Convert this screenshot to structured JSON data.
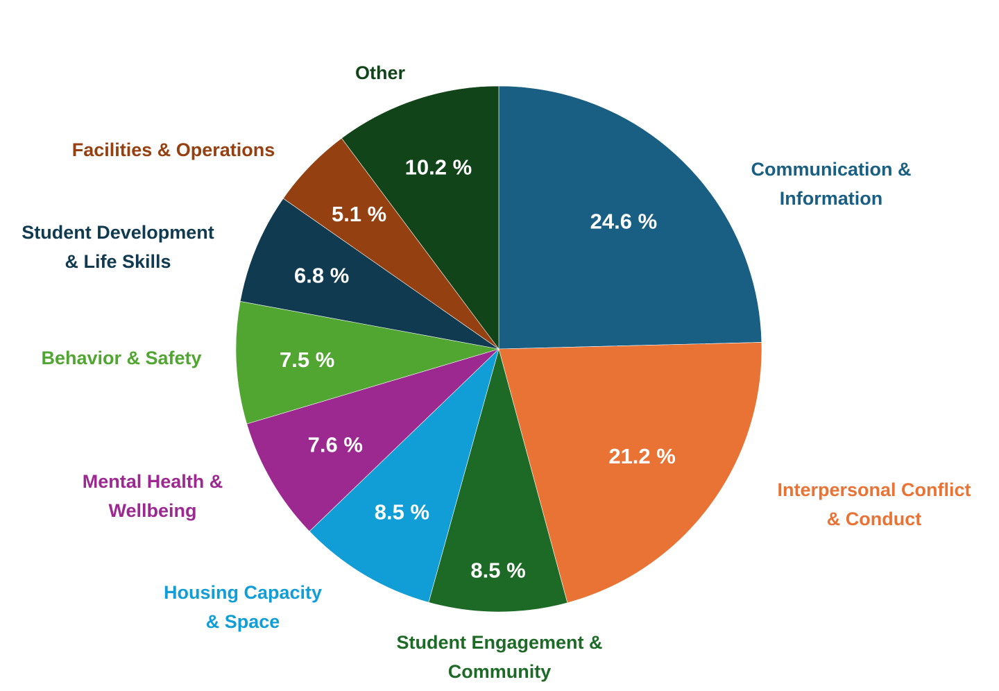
{
  "chart_data": {
    "type": "pie",
    "title": "",
    "slices": [
      {
        "label": "Communication &\nInformation",
        "value": 24.6,
        "display": "24.6 %",
        "color": "#195F83"
      },
      {
        "label": "Interpersonal Conflict\n& Conduct",
        "value": 21.2,
        "display": "21.2 %",
        "color": "#E97334"
      },
      {
        "label": "Student Engagement &\nCommunity",
        "value": 8.5,
        "display": "8.5 %",
        "color": "#1D6A26"
      },
      {
        "label": "Housing Capacity\n& Space",
        "value": 8.5,
        "display": "8.5 %",
        "color": "#119DD6"
      },
      {
        "label": "Mental Health &\nWellbeing",
        "value": 7.6,
        "display": "7.6 %",
        "color": "#9B2990"
      },
      {
        "label": "Behavior & Safety",
        "value": 7.5,
        "display": "7.5 %",
        "color": "#51A632"
      },
      {
        "label": "Student Development\n& Life Skills",
        "value": 6.8,
        "display": "6.8 %",
        "color": "#103A4F"
      },
      {
        "label": "Facilities & Operations",
        "value": 5.1,
        "display": "5.1 %",
        "color": "#954011"
      },
      {
        "label": "Other",
        "value": 10.2,
        "display": "10.2 %",
        "color": "#114418"
      }
    ],
    "start": "top (12 o'clock)",
    "direction": "clockwise",
    "legend": "none (outside category labels)"
  }
}
